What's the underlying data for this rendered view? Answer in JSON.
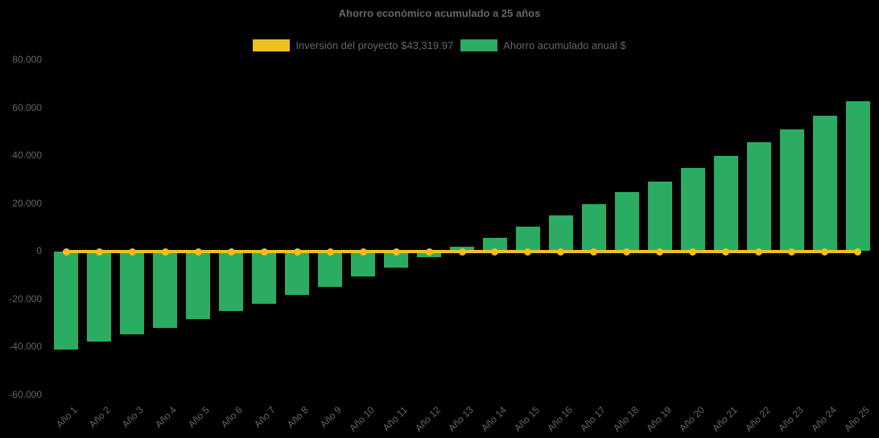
{
  "colors": {
    "background": "#000000",
    "text": "#666666",
    "investment_line": "#EDC11F",
    "savings_bar": "#2BAC63"
  },
  "chart_data": {
    "type": "bar",
    "title": "Ahorro económico acumulado a 25 años",
    "legend_position": "top",
    "grid": false,
    "xlabel": "",
    "ylabel": "",
    "ylim": [
      -60000,
      80000
    ],
    "y_ticks": [
      80000,
      60000,
      40000,
      20000,
      0,
      -20000,
      -40000,
      -60000
    ],
    "y_tick_labels": [
      "80.000",
      "60.000",
      "40.000",
      "20.000",
      "0",
      "-20.000",
      "-40.000",
      "-60.000"
    ],
    "categories": [
      "Año 1",
      "Año 2",
      "Año 3",
      "Año 4",
      "Año 5",
      "Año 6",
      "Año 7",
      "Año 8",
      "Año 9",
      "Año 10",
      "Año 11",
      "Año 12",
      "Año 13",
      "Año 14",
      "Año 15",
      "Año 16",
      "Año 17",
      "Año 18",
      "Año 19",
      "Año 20",
      "Año 21",
      "Año 22",
      "Año 23",
      "Año 24",
      "Año 25"
    ],
    "series": [
      {
        "name": "Inversión del proyecto $43,319.97",
        "type": "line",
        "color": "#EDC11F",
        "values": [
          0,
          0,
          0,
          0,
          0,
          0,
          0,
          0,
          0,
          0,
          0,
          0,
          0,
          0,
          0,
          0,
          0,
          0,
          0,
          0,
          0,
          0,
          0,
          0,
          0
        ]
      },
      {
        "name": "Ahorro acumulado anual $",
        "type": "bar",
        "color": "#2BAC63",
        "values": [
          -41200,
          -37800,
          -34700,
          -32000,
          -28300,
          -25200,
          -22000,
          -18200,
          -14800,
          -10700,
          -6800,
          -2400,
          1900,
          5700,
          10400,
          15000,
          19800,
          24600,
          29100,
          34700,
          39700,
          45400,
          50900,
          56800,
          62700
        ]
      }
    ]
  }
}
